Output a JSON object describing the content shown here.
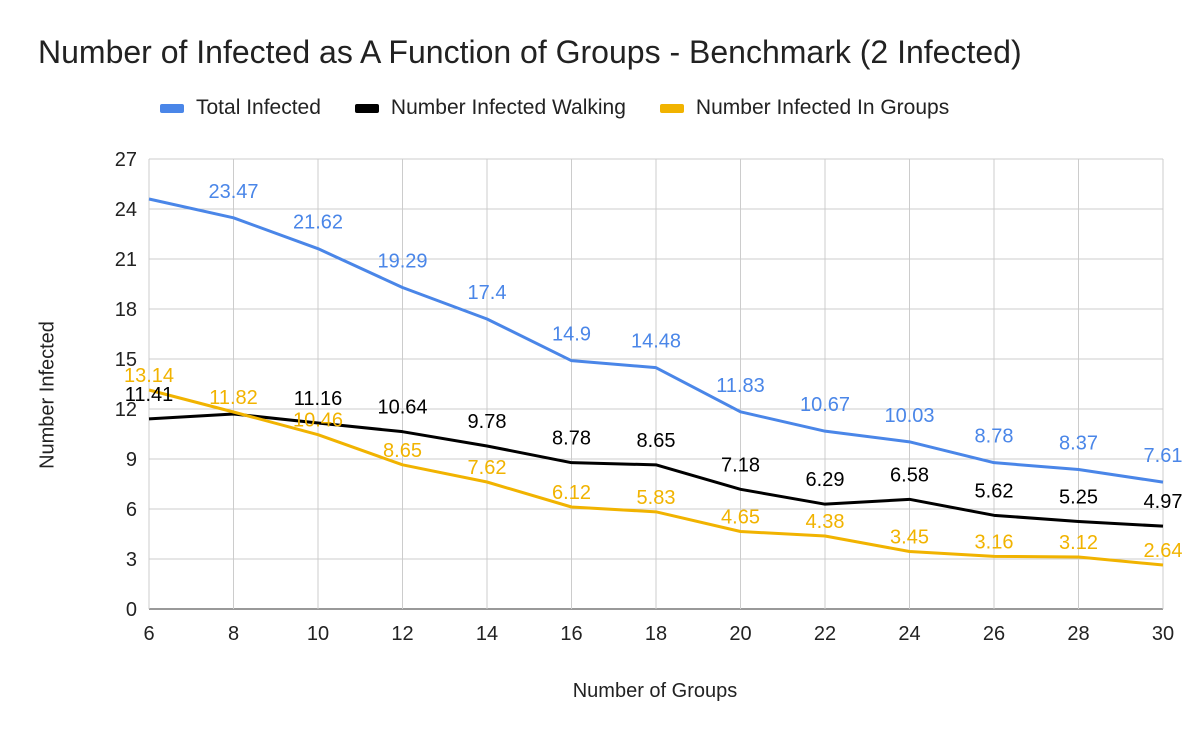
{
  "chart_data": {
    "type": "line",
    "title": "Number of Infected as A Function of Groups - Benchmark (2 Infected)",
    "xlabel": "Number of Groups",
    "ylabel": "Number Infected",
    "x": [
      6,
      8,
      10,
      12,
      14,
      16,
      18,
      20,
      22,
      24,
      26,
      28,
      30
    ],
    "xlim": [
      6,
      30
    ],
    "ylim": [
      0,
      27
    ],
    "yticks": [
      0,
      3,
      6,
      9,
      12,
      15,
      18,
      21,
      24,
      27
    ],
    "grid": true,
    "legend_position": "top",
    "series": [
      {
        "name": "Total Infected",
        "color": "#4a86e8",
        "values": [
          24.6,
          23.47,
          21.62,
          19.29,
          17.4,
          14.9,
          14.48,
          11.83,
          10.67,
          10.03,
          8.78,
          8.37,
          7.61
        ],
        "labels": [
          "",
          "23.47",
          "21.62",
          "19.29",
          "17.4",
          "14.9",
          "14.48",
          "11.83",
          "10.67",
          "10.03",
          "8.78",
          "8.37",
          "7.61"
        ]
      },
      {
        "name": "Number Infected Walking",
        "color": "#000000",
        "values": [
          11.41,
          11.7,
          11.16,
          10.64,
          9.78,
          8.78,
          8.65,
          7.18,
          6.29,
          6.58,
          5.62,
          5.25,
          4.97
        ],
        "labels": [
          "11.41",
          "",
          "11.16",
          "10.64",
          "9.78",
          "8.78",
          "8.65",
          "7.18",
          "6.29",
          "6.58",
          "5.62",
          "5.25",
          "4.97"
        ]
      },
      {
        "name": "Number Infected In Groups",
        "color": "#f1b300",
        "values": [
          13.14,
          11.82,
          10.46,
          8.65,
          7.62,
          6.12,
          5.83,
          4.65,
          4.38,
          3.45,
          3.16,
          3.12,
          2.64
        ],
        "labels": [
          "13.14",
          "11.82",
          "10.46",
          "8.65",
          "7.62",
          "6.12",
          "5.83",
          "4.65",
          "4.38",
          "3.45",
          "3.16",
          "3.12",
          "2.64"
        ]
      }
    ]
  }
}
